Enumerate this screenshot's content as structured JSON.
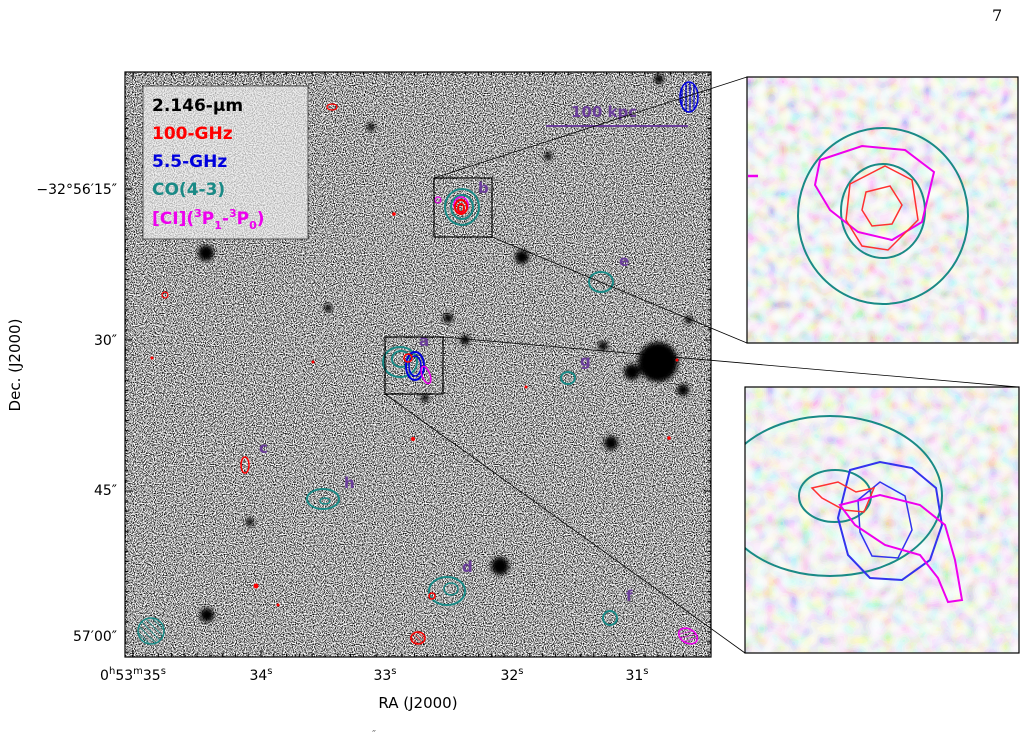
{
  "page_number": "7",
  "caption_fragment": "″",
  "colors": {
    "k_band": "#000000",
    "ghz100": "#ff0000",
    "ghz5": "#0000dd",
    "co43": "#1a8a86",
    "ci": "#ee00ee",
    "source_label": "#6a3d9a",
    "scale_bar": "#6a3d9a"
  },
  "main_panel": {
    "legend": {
      "k_band": "2.146-μm",
      "ghz100": "100-GHz",
      "ghz5": "5.5-GHz",
      "co43": "CO(4-3)",
      "ci_prefix": "[CI](",
      "ci_sup1": "3",
      "ci_mid1": "P",
      "ci_sub1": "1",
      "ci_dash": "-",
      "ci_sup2": "3",
      "ci_mid2": "P",
      "ci_sub2": "0",
      "ci_suffix": ")"
    },
    "scale_bar_label": "100 kpc",
    "x_axis_title": "RA (J2000)",
    "y_axis_title": "Dec. (J2000)",
    "x_ticks": [
      {
        "h": "0",
        "hs": "h",
        "m": "53",
        "ms": "m",
        "s": "35",
        "ss": "s"
      },
      {
        "s": "34",
        "ss": "s"
      },
      {
        "s": "33",
        "ss": "s"
      },
      {
        "s": "32",
        "ss": "s"
      },
      {
        "s": "31",
        "ss": "s"
      }
    ],
    "y_ticks": [
      "−32°56′15″",
      "30″",
      "45″",
      "57′00″"
    ],
    "source_labels": [
      "a",
      "b",
      "c",
      "d",
      "e",
      "f",
      "g",
      "h"
    ]
  },
  "zoom_panels": [
    {
      "source": "b",
      "contours": [
        "co43",
        "ci",
        "ghz100"
      ]
    },
    {
      "source": "a",
      "contours": [
        "co43",
        "ghz5",
        "ghz100",
        "ci"
      ]
    }
  ]
}
